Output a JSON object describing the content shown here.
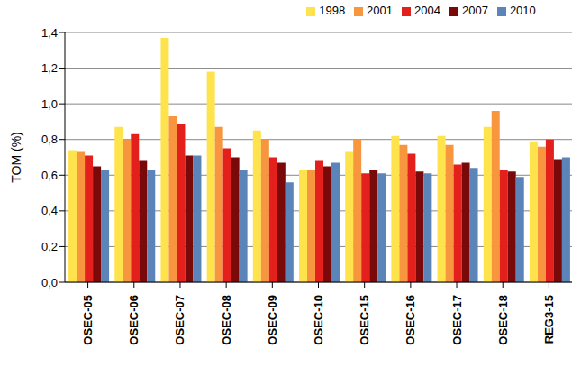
{
  "chart_data": {
    "type": "bar",
    "y_label": "TOM (%)",
    "categories": [
      "OSEC-05",
      "OSEC-06",
      "OSEC-07",
      "OSEC-08",
      "OSEC-09",
      "OSEC-10",
      "OSEC-15",
      "OSEC-16",
      "OSEC-17",
      "OSEC-18",
      "REG3-15"
    ],
    "series": [
      {
        "name": "1998",
        "color": "#ffe34d",
        "values": [
          0.74,
          0.87,
          1.37,
          1.18,
          0.85,
          0.63,
          0.73,
          0.82,
          0.82,
          0.87,
          0.79
        ]
      },
      {
        "name": "2001",
        "color": "#f7963f",
        "values": [
          0.73,
          0.8,
          0.93,
          0.87,
          0.8,
          0.63,
          0.8,
          0.77,
          0.77,
          0.96,
          0.76
        ]
      },
      {
        "name": "2004",
        "color": "#e3201c",
        "values": [
          0.71,
          0.83,
          0.89,
          0.75,
          0.7,
          0.68,
          0.61,
          0.72,
          0.66,
          0.63,
          0.8
        ]
      },
      {
        "name": "2007",
        "color": "#7a0a0a",
        "values": [
          0.65,
          0.68,
          0.71,
          0.7,
          0.67,
          0.65,
          0.63,
          0.62,
          0.67,
          0.62,
          0.69
        ]
      },
      {
        "name": "2010",
        "color": "#5b84b8",
        "values": [
          0.63,
          0.63,
          0.71,
          0.63,
          0.56,
          0.67,
          0.61,
          0.61,
          0.64,
          0.59,
          0.7
        ]
      }
    ],
    "ylim": [
      0,
      1.4
    ],
    "yticks": [
      {
        "value": 0,
        "label": "0,0"
      },
      {
        "value": 0.2,
        "label": "0,2"
      },
      {
        "value": 0.4,
        "label": "0,4"
      },
      {
        "value": 0.6,
        "label": "0,6"
      },
      {
        "value": 0.8,
        "label": "0,8"
      },
      {
        "value": 1.0,
        "label": "1,0"
      },
      {
        "value": 1.2,
        "label": "1,2"
      },
      {
        "value": 1.4,
        "label": "1,4"
      }
    ],
    "grid": true,
    "legend": "top"
  }
}
